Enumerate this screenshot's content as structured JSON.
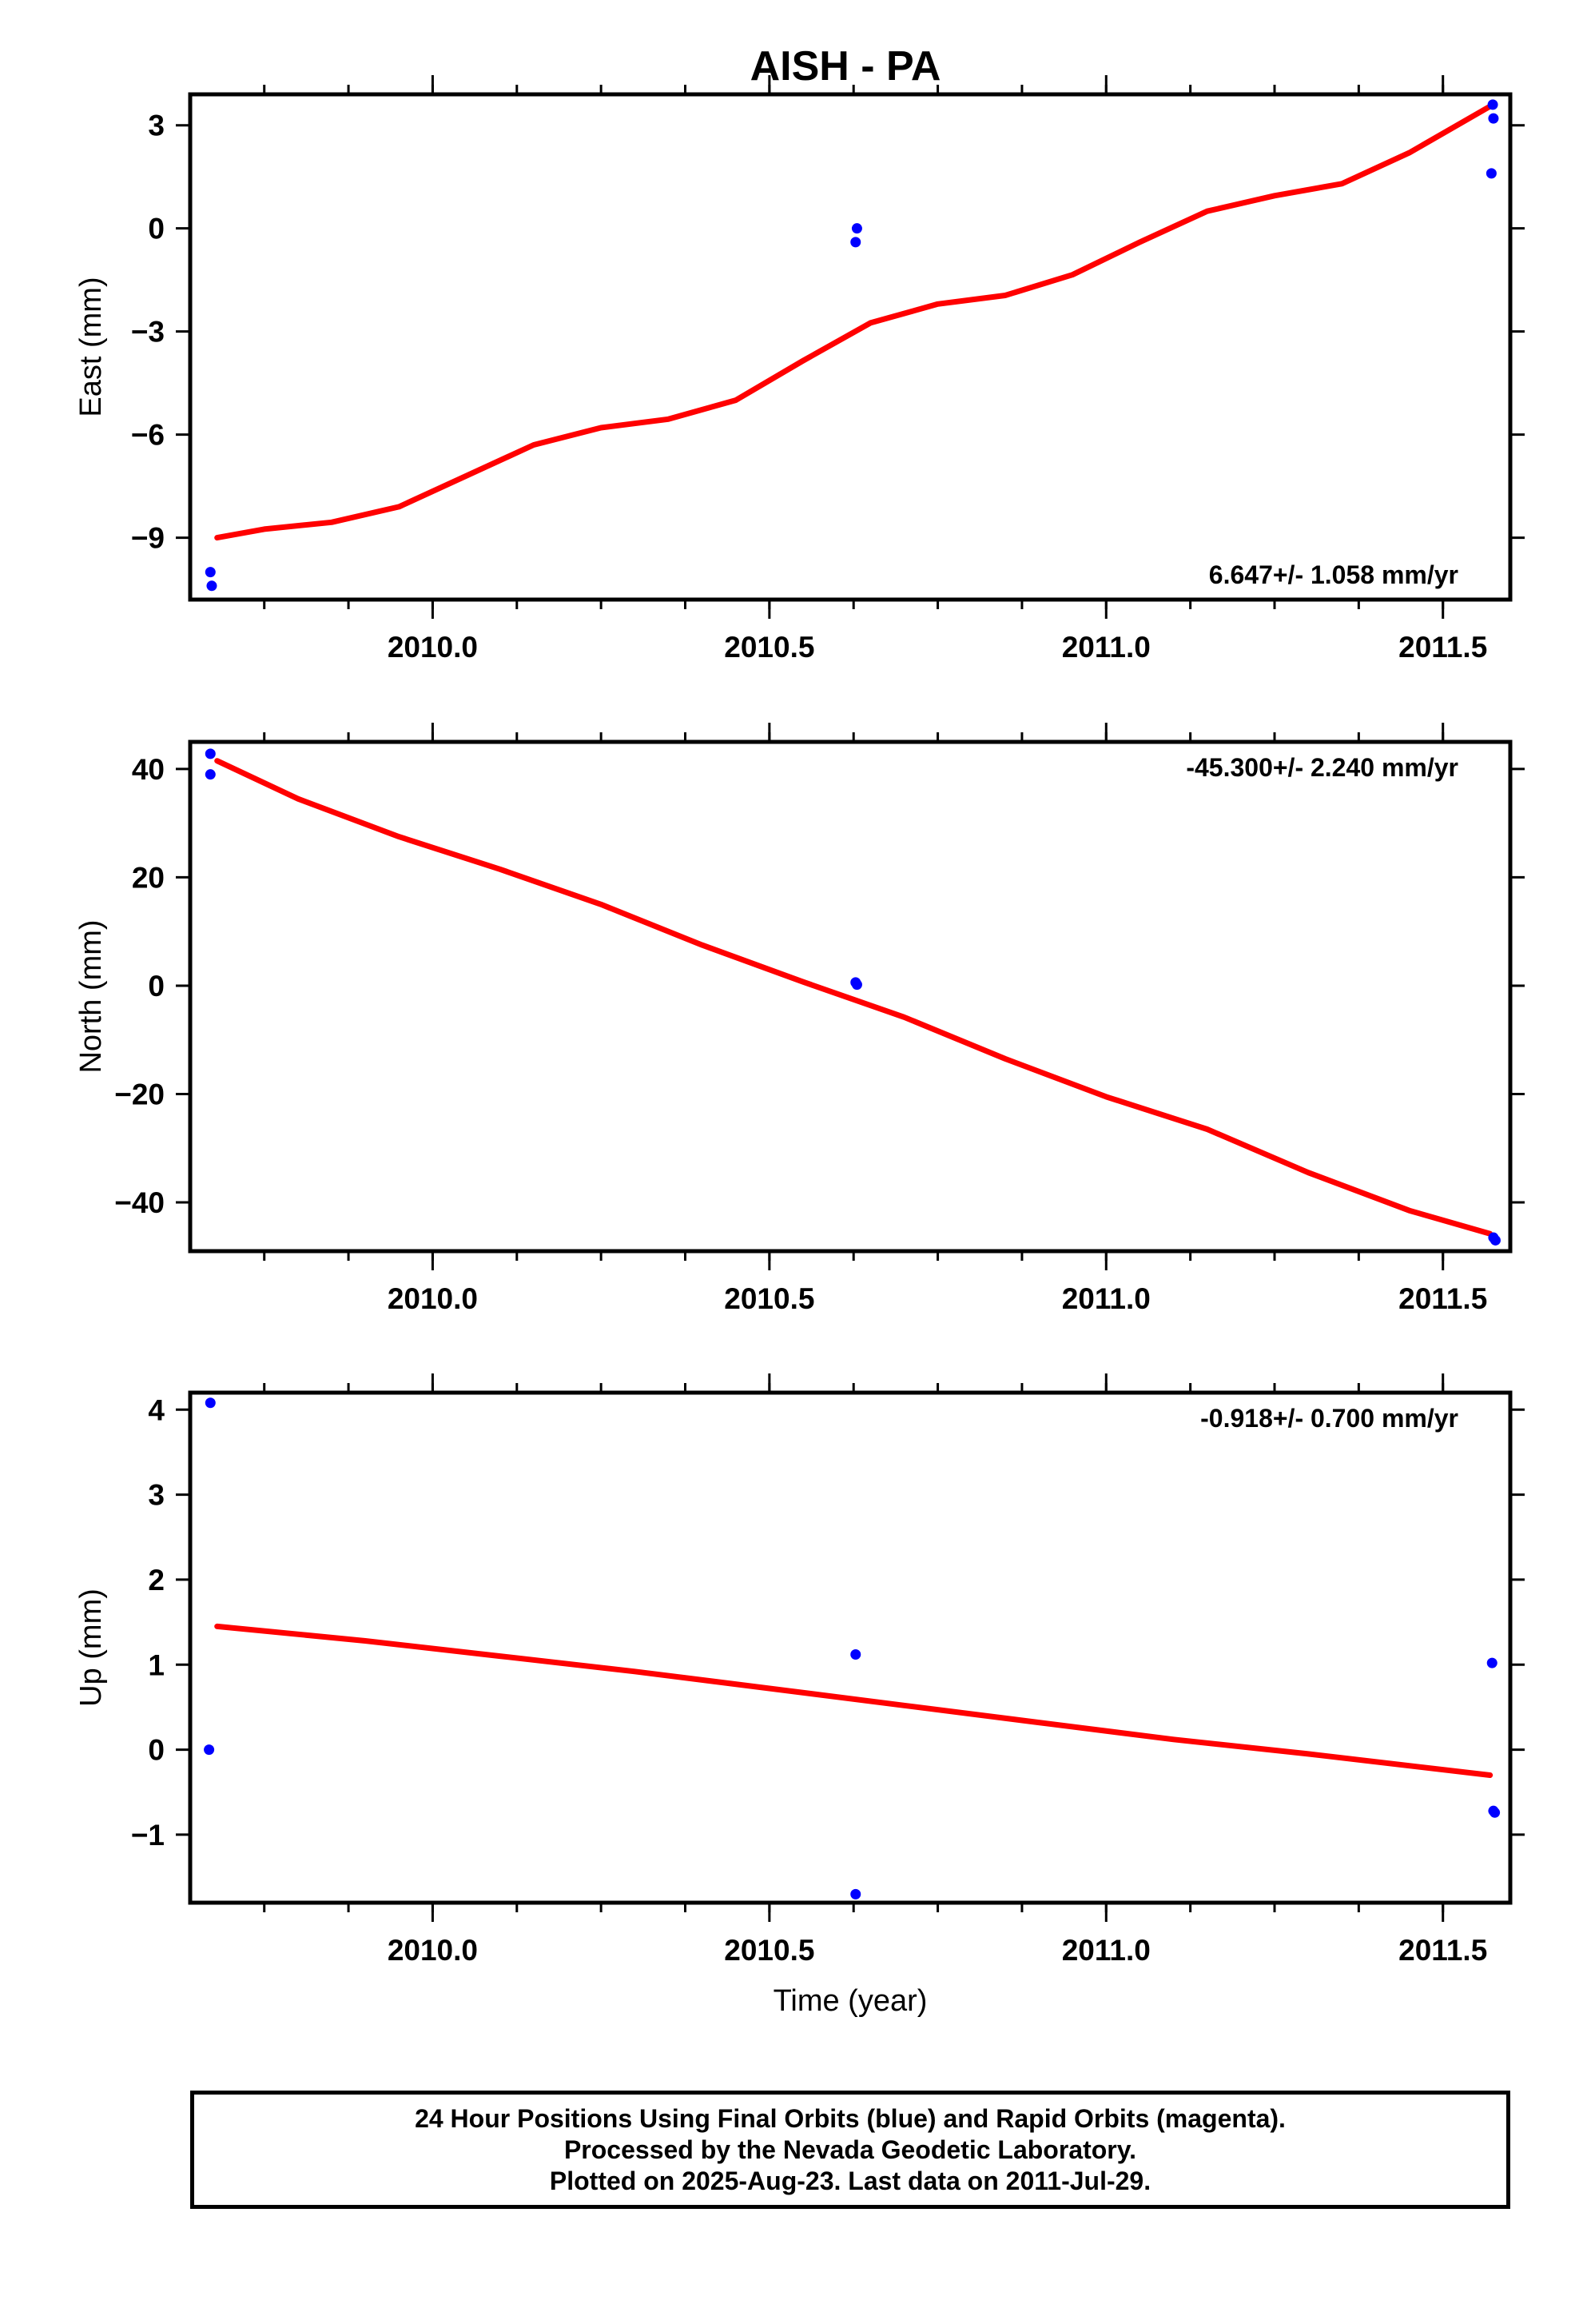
{
  "title": "AISH - PA",
  "footer": {
    "line1": "24 Hour Positions Using Final Orbits (blue) and Rapid Orbits (magenta).",
    "line2": "Processed by the Nevada Geodetic Laboratory.",
    "line3": "Plotted on 2025-Aug-23. Last data on 2011-Jul-29."
  },
  "colors": {
    "data_points": "#0000ff",
    "fit_line": "#ff0000",
    "frame": "#000000"
  },
  "chart_data": [
    {
      "type": "scatter",
      "ylabel": "East (mm)",
      "xlabel": "",
      "xlim": [
        2009.64,
        2011.6
      ],
      "ylim": [
        -10.8,
        3.9
      ],
      "xticks": [
        2010.0,
        2010.5,
        2011.0,
        2011.5
      ],
      "xtick_labels": [
        "2010.0",
        "2010.5",
        "2011.0",
        "2011.5"
      ],
      "yticks": [
        -9,
        -6,
        -3,
        0,
        3
      ],
      "ytick_labels": [
        "−9",
        "−6",
        "−3",
        "0",
        "3"
      ],
      "rate_label": "6.647+/- 1.058 mm/yr",
      "rate_position": "bottom-right",
      "points": [
        {
          "x": 2009.67,
          "y": -10.0
        },
        {
          "x": 2009.672,
          "y": -10.4
        },
        {
          "x": 2010.628,
          "y": -0.4
        },
        {
          "x": 2010.63,
          "y": 0.0
        },
        {
          "x": 2011.572,
          "y": 1.6
        },
        {
          "x": 2011.575,
          "y": 3.2
        },
        {
          "x": 2011.574,
          "y": 3.6
        }
      ],
      "fit": {
        "x": [
          2009.68,
          2009.75,
          2009.85,
          2009.95,
          2010.05,
          2010.15,
          2010.25,
          2010.35,
          2010.45,
          2010.55,
          2010.65,
          2010.75,
          2010.85,
          2010.95,
          2011.05,
          2011.15,
          2011.25,
          2011.35,
          2011.45,
          2011.57
        ],
        "y": [
          -9.0,
          -8.75,
          -8.55,
          -8.1,
          -7.2,
          -6.3,
          -5.8,
          -5.55,
          -5.0,
          -3.85,
          -2.75,
          -2.2,
          -1.95,
          -1.35,
          -0.4,
          0.5,
          0.95,
          1.3,
          2.2,
          3.55
        ]
      }
    },
    {
      "type": "scatter",
      "ylabel": "North (mm)",
      "xlabel": "",
      "xlim": [
        2009.64,
        2011.6
      ],
      "ylim": [
        -49,
        45
      ],
      "xticks": [
        2010.0,
        2010.5,
        2011.0,
        2011.5
      ],
      "xtick_labels": [
        "2010.0",
        "2010.5",
        "2011.0",
        "2011.5"
      ],
      "yticks": [
        -40,
        -20,
        0,
        20,
        40
      ],
      "ytick_labels": [
        "−40",
        "−20",
        "0",
        "20",
        "40"
      ],
      "rate_label": "-45.300+/- 2.240 mm/yr",
      "rate_position": "top-right",
      "points": [
        {
          "x": 2009.67,
          "y": 42.8
        },
        {
          "x": 2009.67,
          "y": 39.0
        },
        {
          "x": 2010.628,
          "y": 0.6
        },
        {
          "x": 2010.63,
          "y": 0.2
        },
        {
          "x": 2011.575,
          "y": -46.5
        },
        {
          "x": 2011.578,
          "y": -47.0
        }
      ],
      "fit": {
        "x": [
          2009.68,
          2009.8,
          2009.95,
          2010.1,
          2010.25,
          2010.4,
          2010.55,
          2010.7,
          2010.85,
          2011.0,
          2011.15,
          2011.3,
          2011.45,
          2011.57
        ],
        "y": [
          41.5,
          34.5,
          27.5,
          21.5,
          15.0,
          7.5,
          0.7,
          -5.8,
          -13.5,
          -20.5,
          -26.5,
          -34.5,
          -41.5,
          -45.8
        ]
      }
    },
    {
      "type": "scatter",
      "ylabel": "Up (mm)",
      "xlabel": "Time (year)",
      "xlim": [
        2009.64,
        2011.6
      ],
      "ylim": [
        -1.8,
        4.2
      ],
      "xticks": [
        2010.0,
        2010.5,
        2011.0,
        2011.5
      ],
      "xtick_labels": [
        "2010.0",
        "2010.5",
        "2011.0",
        "2011.5"
      ],
      "yticks": [
        -1,
        0,
        1,
        2,
        3,
        4
      ],
      "ytick_labels": [
        "−1",
        "0",
        "1",
        "2",
        "3",
        "4"
      ],
      "rate_label": "-0.918+/- 0.700 mm/yr",
      "rate_position": "top-right",
      "points": [
        {
          "x": 2009.67,
          "y": 4.08
        },
        {
          "x": 2009.668,
          "y": 0.0
        },
        {
          "x": 2010.628,
          "y": 1.12
        },
        {
          "x": 2010.628,
          "y": -1.7
        },
        {
          "x": 2011.573,
          "y": 1.02
        },
        {
          "x": 2011.575,
          "y": -0.72
        },
        {
          "x": 2011.577,
          "y": -0.74
        }
      ],
      "fit": {
        "x": [
          2009.68,
          2009.9,
          2010.1,
          2010.3,
          2010.5,
          2010.7,
          2010.9,
          2011.1,
          2011.3,
          2011.57
        ],
        "y": [
          1.45,
          1.28,
          1.1,
          0.92,
          0.72,
          0.52,
          0.32,
          0.12,
          -0.05,
          -0.3
        ]
      }
    }
  ]
}
